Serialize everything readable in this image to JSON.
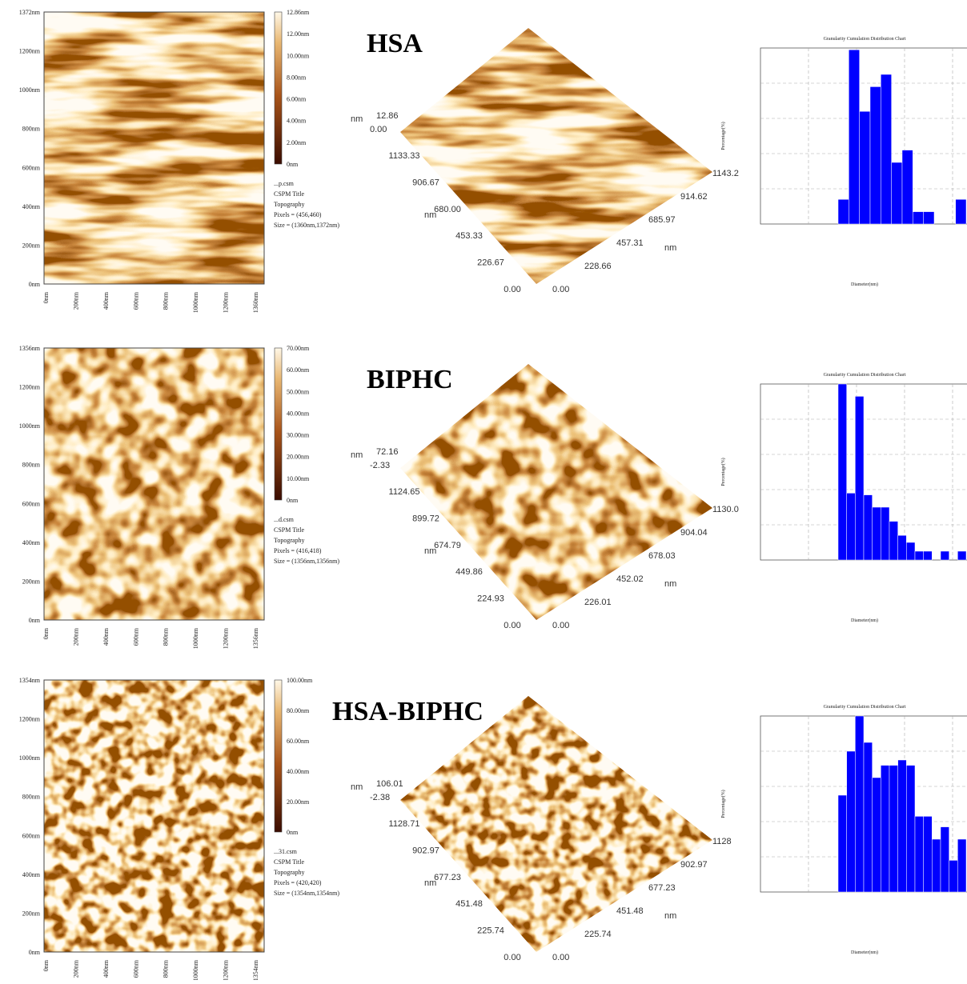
{
  "rows": [
    {
      "label": "HSA",
      "afm": {
        "yticks": [
          "1372nm",
          "1200nm",
          "1000nm",
          "800nm",
          "600nm",
          "400nm",
          "200nm",
          "0nm"
        ],
        "xticks": [
          "0nm",
          "200nm",
          "400nm",
          "600nm",
          "800nm",
          "1000nm",
          "1200nm",
          "1360nm"
        ],
        "colorbar": [
          "12.86nm",
          "12.00nm",
          "10.00nm",
          "8.00nm",
          "6.00nm",
          "4.00nm",
          "2.00nm",
          "0nm"
        ],
        "info": [
          "...p.csm",
          "CSPM Title",
          "Topography",
          "Pixels = (456,460)",
          "Size = (1360nm,1372nm)"
        ]
      },
      "surface": {
        "z": [
          "12.86",
          "0.00"
        ],
        "unit": "nm",
        "left": [
          "1133.33",
          "906.67",
          "680.00",
          "453.33",
          "226.67",
          "0.00"
        ],
        "right": [
          "0.00",
          "228.66",
          "457.31",
          "685.97",
          "914.62",
          "1143.2"
        ]
      },
      "histogram": {
        "type": "bar",
        "title": "Granularity Cumulation Distribution Chart",
        "ylabel": "Percentage(%)",
        "xlabel": "Diameter(nm)",
        "ylim": [
          0,
          100
        ],
        "color": "#0000ff",
        "values": [
          14,
          99,
          64,
          78,
          85,
          35,
          42,
          7,
          7,
          0,
          0,
          14
        ]
      }
    },
    {
      "label": "BIPHC",
      "afm": {
        "yticks": [
          "1356nm",
          "1200nm",
          "1000nm",
          "800nm",
          "600nm",
          "400nm",
          "200nm",
          "0nm"
        ],
        "xticks": [
          "0nm",
          "200nm",
          "400nm",
          "600nm",
          "800nm",
          "1000nm",
          "1200nm",
          "1356nm"
        ],
        "colorbar": [
          "70.00nm",
          "60.00nm",
          "50.00nm",
          "40.00nm",
          "30.00nm",
          "20.00nm",
          "10.00nm",
          "0nm"
        ],
        "info": [
          "...d.csm",
          "CSPM Title",
          "Topography",
          "Pixels = (416,418)",
          "Size = (1356nm,1356nm)"
        ]
      },
      "surface": {
        "z": [
          "72.16",
          "-2.33"
        ],
        "unit": "nm",
        "left": [
          "1124.65",
          "899.72",
          "674.79",
          "449.86",
          "224.93",
          "0.00"
        ],
        "right": [
          "0.00",
          "226.01",
          "452.02",
          "678.03",
          "904.04",
          "1130.0"
        ]
      },
      "histogram": {
        "type": "bar",
        "title": "Granularity Cumulation Distribution Chart",
        "ylabel": "Percentage(%)",
        "xlabel": "Diameter(nm)",
        "ylim": [
          0,
          100
        ],
        "color": "#0000ff",
        "values": [
          100,
          38,
          93,
          37,
          30,
          30,
          22,
          14,
          10,
          5,
          5,
          0,
          5,
          0,
          5
        ]
      }
    },
    {
      "label": "HSA-BIPHC",
      "afm": {
        "yticks": [
          "1354nm",
          "1200nm",
          "1000nm",
          "800nm",
          "600nm",
          "400nm",
          "200nm",
          "0nm"
        ],
        "xticks": [
          "0nm",
          "200nm",
          "400nm",
          "600nm",
          "800nm",
          "1000nm",
          "1200nm",
          "1354nm"
        ],
        "colorbar": [
          "100.00nm",
          "80.00nm",
          "60.00nm",
          "40.00nm",
          "20.00nm",
          "0nm"
        ],
        "info": [
          "...31.csm",
          "CSPM Title",
          "Topography",
          "Pixels = (420,420)",
          "Size = (1354nm,1354nm)"
        ]
      },
      "surface": {
        "z": [
          "106.01",
          "-2.38"
        ],
        "unit": "nm",
        "left": [
          "1128.71",
          "902.97",
          "677.23",
          "451.48",
          "225.74",
          "0.00"
        ],
        "right": [
          "0.00",
          "225.74",
          "451.48",
          "677.23",
          "902.97",
          "1128"
        ]
      },
      "histogram": {
        "type": "bar",
        "title": "Granularity Cumulation Distribution Chart",
        "ylabel": "Percentage(%)",
        "xlabel": "Diameter(nm)",
        "ylim": [
          0,
          100
        ],
        "color": "#0000ff",
        "values": [
          55,
          80,
          100,
          85,
          65,
          72,
          72,
          75,
          72,
          43,
          43,
          30,
          37,
          18,
          30
        ]
      }
    }
  ]
}
